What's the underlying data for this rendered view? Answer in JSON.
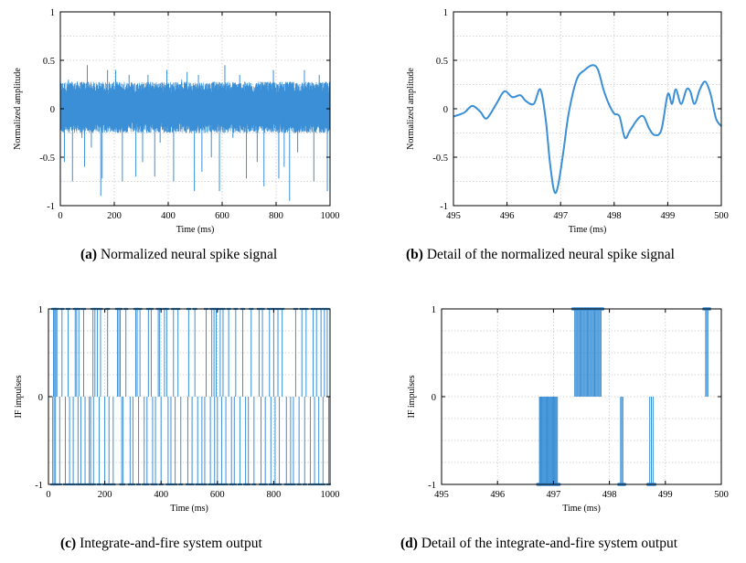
{
  "colors": {
    "series": "#3a8fd6",
    "grid": "#c8c8c8",
    "axis": "#000000"
  },
  "captions": [
    {
      "letter": "(a)",
      "text": "Normalized neural spike signal"
    },
    {
      "letter": "(b)",
      "text": "Detail of the normalized neural spike signal"
    },
    {
      "letter": "(c)",
      "text": "Integrate-and-fire system output"
    },
    {
      "letter": "(d)",
      "text": "Detail of the integrate-and-fire system output"
    }
  ],
  "chart_data": [
    {
      "id": "a",
      "type": "line",
      "title": "",
      "xlabel": "Time (ms)",
      "ylabel": "Normalized amplitude",
      "xlim": [
        0,
        1000
      ],
      "ylim": [
        -1,
        1
      ],
      "xticks": [
        0,
        200,
        400,
        600,
        800,
        1000
      ],
      "yticks": [
        -1,
        -0.5,
        0,
        0.5,
        1
      ],
      "grid": true,
      "noise_band": [
        -0.25,
        0.28
      ],
      "spikes": [
        {
          "x": 15,
          "y": -0.55
        },
        {
          "x": 30,
          "y": 0.3
        },
        {
          "x": 45,
          "y": -0.75
        },
        {
          "x": 80,
          "y": -0.3
        },
        {
          "x": 90,
          "y": -0.6
        },
        {
          "x": 100,
          "y": 0.45
        },
        {
          "x": 115,
          "y": -0.4
        },
        {
          "x": 150,
          "y": -0.9
        },
        {
          "x": 155,
          "y": -0.72
        },
        {
          "x": 175,
          "y": 0.4
        },
        {
          "x": 205,
          "y": 0.4
        },
        {
          "x": 230,
          "y": -0.75
        },
        {
          "x": 255,
          "y": 0.35
        },
        {
          "x": 280,
          "y": -0.7
        },
        {
          "x": 305,
          "y": -0.55
        },
        {
          "x": 325,
          "y": 0.35
        },
        {
          "x": 350,
          "y": -0.7
        },
        {
          "x": 370,
          "y": -0.35
        },
        {
          "x": 395,
          "y": 0.4
        },
        {
          "x": 420,
          "y": -0.75
        },
        {
          "x": 450,
          "y": 0.3
        },
        {
          "x": 470,
          "y": 0.38
        },
        {
          "x": 497,
          "y": -0.85
        },
        {
          "x": 512,
          "y": 0.35
        },
        {
          "x": 525,
          "y": -0.65
        },
        {
          "x": 560,
          "y": -0.5
        },
        {
          "x": 590,
          "y": -0.85
        },
        {
          "x": 610,
          "y": 0.45
        },
        {
          "x": 640,
          "y": -0.3
        },
        {
          "x": 665,
          "y": 0.35
        },
        {
          "x": 690,
          "y": -0.72
        },
        {
          "x": 730,
          "y": -0.55
        },
        {
          "x": 755,
          "y": -0.8
        },
        {
          "x": 790,
          "y": 0.4
        },
        {
          "x": 810,
          "y": -0.72
        },
        {
          "x": 830,
          "y": -0.6
        },
        {
          "x": 850,
          "y": -0.95
        },
        {
          "x": 880,
          "y": -0.45
        },
        {
          "x": 905,
          "y": 0.4
        },
        {
          "x": 940,
          "y": -0.75
        },
        {
          "x": 960,
          "y": 0.35
        },
        {
          "x": 990,
          "y": -0.85
        }
      ]
    },
    {
      "id": "b",
      "type": "line",
      "title": "",
      "xlabel": "Time (ms)",
      "ylabel": "Normalized amplitude",
      "xlim": [
        495,
        500
      ],
      "ylim": [
        -1,
        1
      ],
      "xticks": [
        495,
        496,
        497,
        498,
        499,
        500
      ],
      "yticks": [
        -1,
        -0.5,
        0,
        0.5,
        1
      ],
      "grid": true,
      "x": [
        495.0,
        495.2,
        495.35,
        495.5,
        495.62,
        495.8,
        495.95,
        496.1,
        496.25,
        496.35,
        496.5,
        496.62,
        496.72,
        496.8,
        496.88,
        496.95,
        497.05,
        497.15,
        497.3,
        497.45,
        497.6,
        497.7,
        497.8,
        497.9,
        498.0,
        498.1,
        498.2,
        498.3,
        498.45,
        498.55,
        498.65,
        498.75,
        498.88,
        499.0,
        499.08,
        499.15,
        499.25,
        499.35,
        499.42,
        499.5,
        499.6,
        499.7,
        499.8,
        499.9,
        500.0
      ],
      "y": [
        -0.08,
        -0.04,
        0.03,
        -0.03,
        -0.1,
        0.05,
        0.18,
        0.12,
        0.14,
        0.08,
        0.05,
        0.2,
        -0.1,
        -0.55,
        -0.85,
        -0.8,
        -0.45,
        -0.05,
        0.3,
        0.4,
        0.45,
        0.4,
        0.2,
        0.05,
        -0.05,
        -0.08,
        -0.3,
        -0.22,
        -0.1,
        -0.08,
        -0.2,
        -0.27,
        -0.22,
        0.15,
        0.05,
        0.2,
        0.05,
        0.2,
        0.18,
        0.05,
        0.2,
        0.28,
        0.15,
        -0.1,
        -0.18
      ]
    },
    {
      "id": "c",
      "type": "line",
      "title": "",
      "xlabel": "Time (ms)",
      "ylabel": "IF impulses",
      "xlim": [
        0,
        1000
      ],
      "ylim": [
        -1,
        1
      ],
      "xticks": [
        0,
        200,
        400,
        600,
        800,
        1000
      ],
      "yticks": [
        -1,
        0,
        1
      ],
      "grid": true,
      "pos_impulses": [
        18,
        22,
        26,
        30,
        48,
        70,
        95,
        100,
        108,
        125,
        158,
        165,
        174,
        185,
        210,
        245,
        250,
        255,
        275,
        310,
        315,
        325,
        355,
        365,
        390,
        395,
        412,
        420,
        444,
        460,
        498,
        520,
        560,
        580,
        588,
        596,
        610,
        620,
        640,
        665,
        690,
        720,
        748,
        760,
        785,
        800,
        815,
        830,
        878,
        900,
        915,
        940,
        952,
        968,
        980,
        990
      ],
      "neg_impulses": [
        15,
        20,
        25,
        40,
        60,
        75,
        88,
        105,
        115,
        130,
        145,
        150,
        160,
        180,
        200,
        215,
        230,
        260,
        265,
        290,
        300,
        320,
        340,
        350,
        370,
        380,
        400,
        425,
        435,
        450,
        470,
        495,
        510,
        530,
        545,
        555,
        575,
        590,
        600,
        615,
        630,
        650,
        660,
        680,
        700,
        710,
        730,
        755,
        770,
        790,
        805,
        820,
        845,
        860,
        870,
        890,
        910,
        930,
        945,
        960,
        975,
        995
      ]
    },
    {
      "id": "d",
      "type": "line",
      "title": "",
      "xlabel": "Time (ms)",
      "ylabel": "IF impulses",
      "xlim": [
        495,
        500
      ],
      "ylim": [
        -1,
        1
      ],
      "xticks": [
        495,
        496,
        497,
        498,
        499,
        500
      ],
      "yticks": [
        -1,
        0,
        1
      ],
      "grid": true,
      "neg_bursts": [
        {
          "from": 496.75,
          "to": 497.07,
          "count": 22
        },
        {
          "from": 498.2,
          "to": 498.24,
          "count": 3
        },
        {
          "from": 498.72,
          "to": 498.78,
          "count": 3
        }
      ],
      "pos_bursts": [
        {
          "from": 497.38,
          "to": 497.85,
          "count": 26
        },
        {
          "from": 499.72,
          "to": 499.76,
          "count": 3
        }
      ]
    }
  ]
}
